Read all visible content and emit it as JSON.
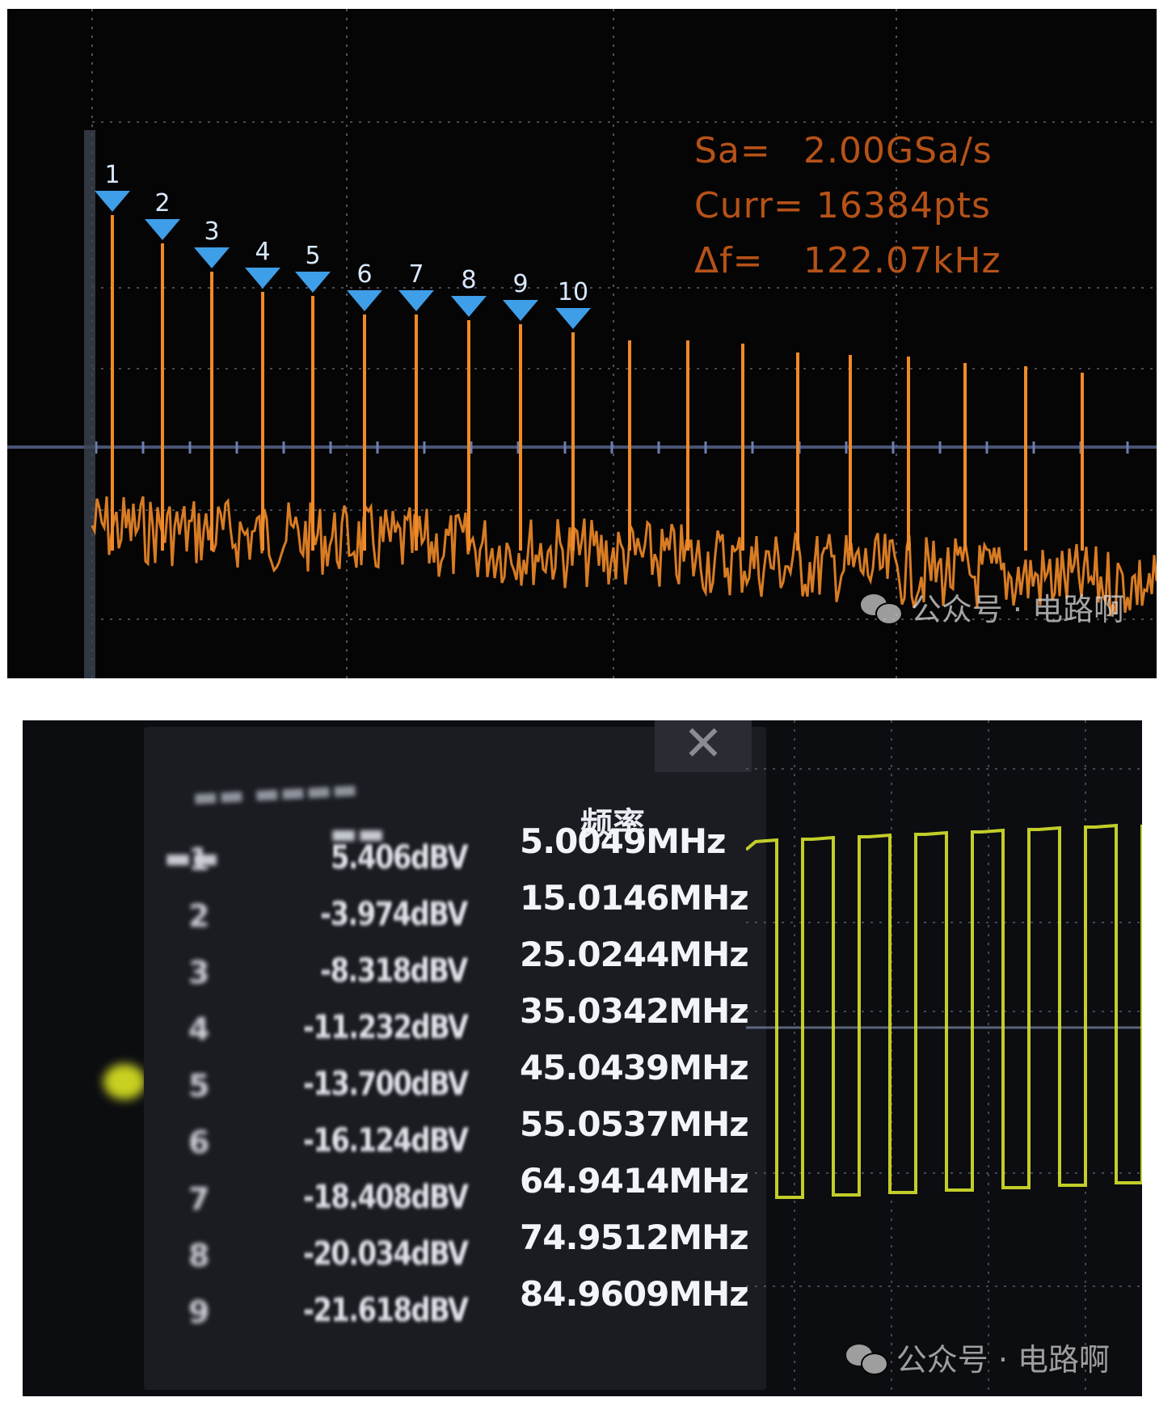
{
  "spectrum": {
    "measurements": {
      "sa_label": "Sa=",
      "sa_value": "2.00GSa/s",
      "curr_label": "Curr=",
      "curr_value": "16384pts",
      "df_label": "Δf=",
      "df_value": "122.07kHz"
    },
    "marker_labels": [
      "1",
      "2",
      "3",
      "4",
      "5",
      "6",
      "7",
      "8",
      "9",
      "10"
    ],
    "colors": {
      "trace": "#f08a28",
      "marker": "#3f9ee8",
      "grid": "#8a8fa8",
      "background": "#060505"
    }
  },
  "harmonic_list": {
    "column_headers": {
      "frequency": "频率"
    },
    "rows": [
      {
        "amplitude": "5.406dBV",
        "frequency": "5.0049MHz"
      },
      {
        "amplitude": "-3.974dBV",
        "frequency": "15.0146MHz"
      },
      {
        "amplitude": "-8.318dBV",
        "frequency": "25.0244MHz"
      },
      {
        "amplitude": "-11.232dBV",
        "frequency": "35.0342MHz"
      },
      {
        "amplitude": "-13.700dBV",
        "frequency": "45.0439MHz"
      },
      {
        "amplitude": "-16.124dBV",
        "frequency": "55.0537MHz"
      },
      {
        "amplitude": "-18.408dBV",
        "frequency": "64.9414MHz"
      },
      {
        "amplitude": "-20.034dBV",
        "frequency": "74.9512MHz"
      },
      {
        "amplitude": "-21.618dBV",
        "frequency": "84.9609MHz"
      }
    ],
    "row_indices": [
      "1",
      "2",
      "3",
      "4",
      "5",
      "6",
      "7",
      "8",
      "9"
    ],
    "colors": {
      "waveform": "#d6e22c"
    }
  },
  "watermark": {
    "text": "公众号 · 电路啊"
  },
  "watermark_top": {
    "text": "公众号 · 电路啊"
  }
}
